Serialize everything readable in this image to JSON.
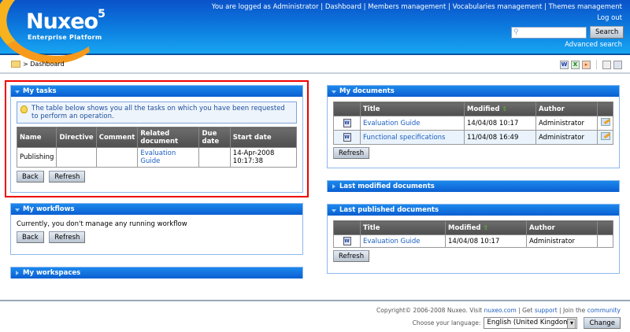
{
  "header": {
    "logo": {
      "name": "Nuxeo",
      "version": "5",
      "tagline": "Enterprise Platform"
    },
    "logged_as": "You are logged as Administrator",
    "nav": [
      "Dashboard",
      "Members management",
      "Vocabularies management",
      "Themes management"
    ],
    "logout": "Log out",
    "search": {
      "value": "",
      "button": "Search"
    },
    "advanced_search": "Advanced search"
  },
  "breadcrumb": {
    "separator": ">",
    "current": "Dashboard"
  },
  "toolbar_icons": [
    "word-export-icon",
    "excel-export-icon",
    "slideshow-icon",
    "copy-icon",
    "print-icon"
  ],
  "my_tasks": {
    "title": "My tasks",
    "info": "The table below shows you all the tasks on which you have been requested to perform an operation.",
    "columns": [
      "Name",
      "Directive",
      "Comment",
      "Related document",
      "Due date",
      "Start date"
    ],
    "rows": [
      {
        "name": "Publishing",
        "directive": "",
        "comment": "",
        "document": "Evaluation Guide",
        "due": "",
        "start": "14-Apr-2008 10:17:38"
      }
    ],
    "back": "Back",
    "refresh": "Refresh"
  },
  "my_workflows": {
    "title": "My workflows",
    "message": "Currently, you don't manage any running workflow",
    "back": "Back",
    "refresh": "Refresh"
  },
  "my_workspaces": {
    "title": "My workspaces"
  },
  "my_documents": {
    "title": "My documents",
    "columns": [
      "",
      "Title",
      "Modified",
      "Author",
      ""
    ],
    "rows": [
      {
        "title": "Evaluation Guide",
        "modified": "14/04/08 10:17",
        "author": "Administrator"
      },
      {
        "title": "Functional specifications",
        "modified": "11/04/08 16:49",
        "author": "Administrator"
      }
    ],
    "refresh": "Refresh"
  },
  "last_modified": {
    "title": "Last modified documents"
  },
  "last_published": {
    "title": "Last published documents",
    "columns": [
      "",
      "Title",
      "Modified",
      "Author",
      ""
    ],
    "rows": [
      {
        "title": "Evaluation Guide",
        "modified": "14/04/08 10:17",
        "author": "Administrator"
      }
    ],
    "refresh": "Refresh"
  },
  "footer": {
    "copyright": "Copyright© 2006-2008 Nuxeo. Visit",
    "nuxeo_link": "nuxeo.com",
    "get": "Get",
    "support": "support",
    "join": "Join the",
    "community": "community",
    "language_label": "Choose your language:",
    "language_value": "English (United Kingdom)",
    "change": "Change"
  },
  "colors": {
    "header_blue": "#0b5fd1",
    "highlight": "#e00000",
    "link": "#1d5fbf"
  }
}
